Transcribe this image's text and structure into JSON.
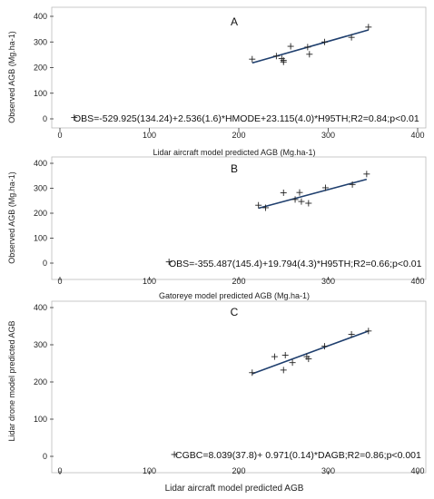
{
  "chart_data": [
    {
      "type": "scatter",
      "panel_label": "A",
      "xlabel": "Lidar aircraft model predicted AGB (Mg.ha-1)",
      "ylabel": "Observed AGB (Mg.ha-1)",
      "xlim": [
        0,
        400
      ],
      "ylim": [
        0,
        400
      ],
      "xticks": [
        0,
        100,
        200,
        300,
        400
      ],
      "yticks": [
        0,
        100,
        200,
        300,
        400
      ],
      "points": [
        [
          215,
          233
        ],
        [
          242,
          245
        ],
        [
          248,
          235
        ],
        [
          250,
          222
        ],
        [
          250,
          228
        ],
        [
          258,
          283
        ],
        [
          277,
          280
        ],
        [
          279,
          252
        ],
        [
          296,
          300
        ],
        [
          326,
          318
        ],
        [
          345,
          358
        ]
      ],
      "fit_line": {
        "x": [
          215,
          345
        ],
        "y": [
          218,
          347
        ]
      },
      "equation": "OBS=-529.925(134.24)+2.536(1.6)*HMODE+23.115(4.0)*H95TH;R2=0.84;p<0.01",
      "equation_at": [
        16,
        5
      ]
    },
    {
      "type": "scatter",
      "panel_label": "B",
      "xlabel": "Gatoreye model predicted AGB (Mg.ha-1)",
      "ylabel": "Observed AGB (Mg.ha-1)",
      "xlim": [
        0,
        400
      ],
      "ylim": [
        0,
        400
      ],
      "xticks": [
        0,
        100,
        200,
        300,
        400
      ],
      "yticks": [
        0,
        100,
        200,
        300,
        400
      ],
      "points": [
        [
          222,
          232
        ],
        [
          230,
          222
        ],
        [
          250,
          282
        ],
        [
          263,
          255
        ],
        [
          268,
          283
        ],
        [
          270,
          247
        ],
        [
          278,
          240
        ],
        [
          297,
          302
        ],
        [
          327,
          315
        ],
        [
          343,
          357
        ]
      ],
      "fit_line": {
        "x": [
          222,
          343
        ],
        "y": [
          220,
          336
        ]
      },
      "equation": "OBS=-355.487(145.4)+19.794(4.3)*H95TH;R2=0.66;p<0.01",
      "equation_at": [
        122,
        5
      ]
    },
    {
      "type": "scatter",
      "panel_label": "C",
      "xlabel": "Lidar aircraft model predicted AGB",
      "ylabel": "Lidar drone model predicted AGB",
      "xlim": [
        0,
        400
      ],
      "ylim": [
        0,
        400
      ],
      "xticks": [
        0,
        100,
        200,
        300,
        400
      ],
      "yticks": [
        0,
        100,
        200,
        300,
        400
      ],
      "points": [
        [
          215,
          225
        ],
        [
          240,
          268
        ],
        [
          250,
          232
        ],
        [
          252,
          272
        ],
        [
          260,
          252
        ],
        [
          276,
          268
        ],
        [
          278,
          262
        ],
        [
          296,
          296
        ],
        [
          326,
          328
        ],
        [
          345,
          337
        ]
      ],
      "fit_line": {
        "x": [
          215,
          345
        ],
        "y": [
          222,
          337
        ]
      },
      "equation": "CGBC=8.039(37.8)+ 0.971(0.14)*DAGB;R2=0.86;p<0.001",
      "equation_at": [
        128,
        5
      ]
    }
  ],
  "colors": {
    "fit_line": "#1f3f6e",
    "markers": "#222222",
    "axes": "#333333"
  }
}
